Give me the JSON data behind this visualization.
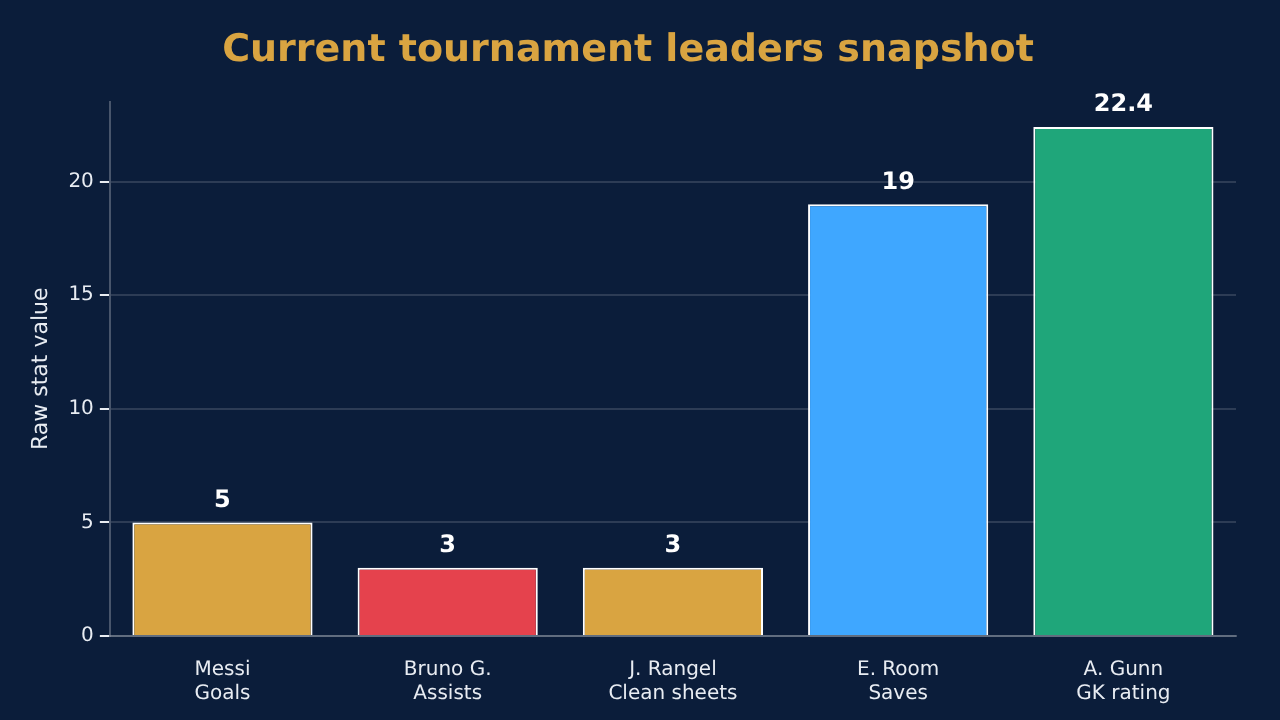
{
  "chart_data": {
    "type": "bar",
    "title": "Current tournament leaders snapshot",
    "ylabel": "Raw stat value",
    "categories": [
      "Messi\nGoals",
      "Bruno G.\nAssists",
      "J. Rangel\nClean sheets",
      "E. Room\nSaves",
      "A. Gunn\nGK rating"
    ],
    "values": [
      5,
      3,
      3,
      19,
      22.4
    ],
    "colors": [
      "#d9a441",
      "#e5424d",
      "#d9a441",
      "#3fa7ff",
      "#1fa67a"
    ],
    "ylim": [
      0,
      23.52
    ],
    "yticks": [
      0,
      5,
      10,
      15,
      20
    ],
    "grid": "y",
    "data_labels": true,
    "legend": false
  }
}
